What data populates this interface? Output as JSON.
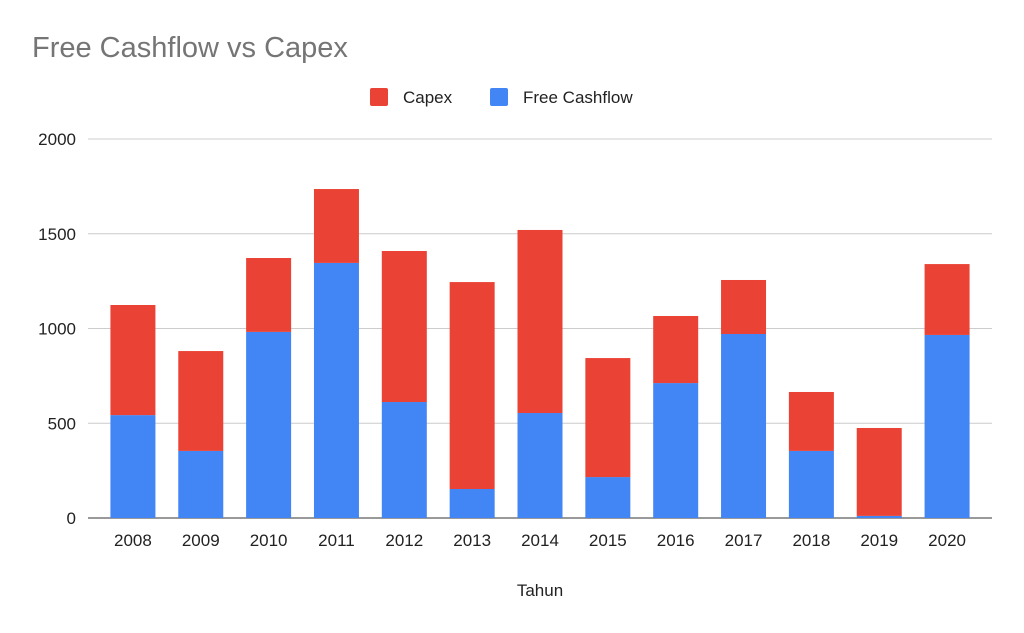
{
  "chart_data": {
    "type": "bar",
    "stacked": true,
    "title": "Free Cashflow vs Capex",
    "xlabel": "Tahun",
    "ylabel": "",
    "ylim": [
      0,
      2000
    ],
    "yticks": [
      0,
      500,
      1000,
      1500,
      2000
    ],
    "grid": true,
    "legend_position": "top-center",
    "categories": [
      "2008",
      "2009",
      "2010",
      "2011",
      "2012",
      "2013",
      "2014",
      "2015",
      "2016",
      "2017",
      "2018",
      "2019",
      "2020"
    ],
    "series": [
      {
        "name": "Free Cashflow",
        "color": "#4285f4",
        "values": [
          543,
          354,
          982,
          1346,
          612,
          153,
          554,
          216,
          712,
          971,
          354,
          11,
          966
        ]
      },
      {
        "name": "Capex",
        "color": "#ea4335",
        "values": [
          581,
          527,
          390,
          390,
          797,
          1092,
          966,
          628,
          354,
          285,
          311,
          464,
          374
        ]
      }
    ],
    "legend_order": [
      "Capex",
      "Free Cashflow"
    ]
  }
}
